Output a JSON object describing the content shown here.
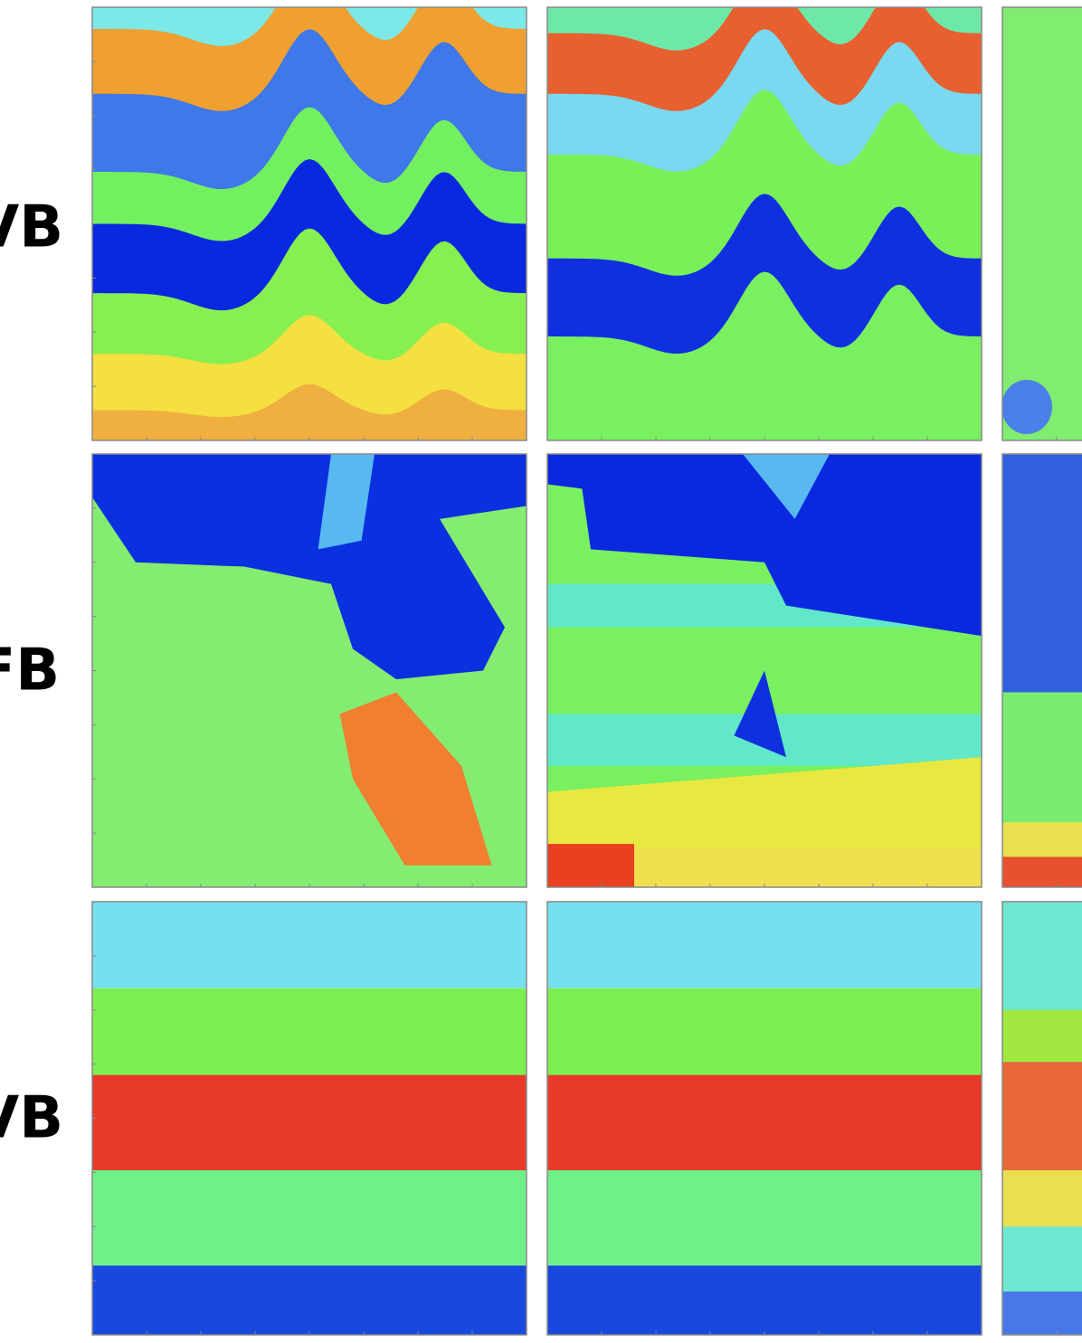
{
  "rows": [
    {
      "label": "VB"
    },
    {
      "label": "FB"
    },
    {
      "label": "VB"
    }
  ]
}
